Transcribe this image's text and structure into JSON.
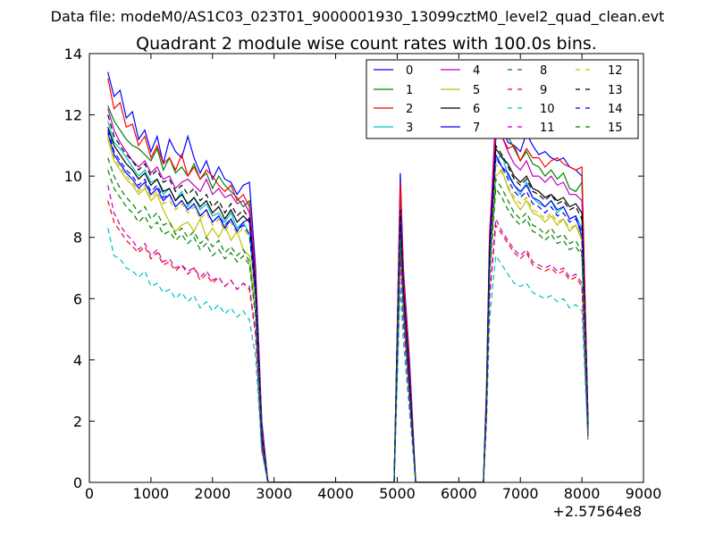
{
  "chart_data": {
    "type": "line",
    "suptitle": "Data file: modeM0/AS1C03_023T01_9000001930_13099cztM0_level2_quad_clean.evt",
    "title": "Quadrant 2 module wise count rates with 100.0s bins.",
    "xlabel": "",
    "ylabel": "",
    "x_offset_label": "+2.57564e8",
    "xlim": [
      0,
      9000
    ],
    "ylim": [
      0,
      14
    ],
    "xticks": [
      0,
      1000,
      2000,
      3000,
      4000,
      5000,
      6000,
      7000,
      8000,
      9000
    ],
    "yticks": [
      0,
      2,
      4,
      6,
      8,
      10,
      12,
      14
    ],
    "grid": false,
    "legend_position": "top-right",
    "legend_columns": 4,
    "x": [
      300,
      400,
      500,
      600,
      700,
      800,
      900,
      1000,
      1100,
      1200,
      1300,
      1400,
      1500,
      1600,
      1700,
      1800,
      1900,
      2000,
      2100,
      2200,
      2300,
      2400,
      2500,
      2600,
      2700,
      2800,
      2900,
      3000,
      3500,
      4000,
      4500,
      4950,
      5050,
      5100,
      5200,
      5300,
      5400,
      5500,
      6000,
      6400,
      6450,
      6500,
      6600,
      6700,
      6800,
      6900,
      7000,
      7100,
      7200,
      7300,
      7400,
      7500,
      7600,
      7700,
      7800,
      7900,
      8000,
      8100
    ],
    "series": [
      {
        "name": "0",
        "color": "#0000ff",
        "dash": "solid",
        "values": [
          13.4,
          12.6,
          12.8,
          11.9,
          12.1,
          11.2,
          11.5,
          10.8,
          11.3,
          10.4,
          11.2,
          10.8,
          10.6,
          11.3,
          10.6,
          10.1,
          10.5,
          9.9,
          10.3,
          9.9,
          9.8,
          9.4,
          9.7,
          9.8,
          7.0,
          2.0,
          0,
          0,
          0,
          0,
          0,
          0,
          10.1,
          7.0,
          4.0,
          0,
          0,
          0,
          0,
          0,
          3.0,
          8.0,
          11.2,
          11.6,
          11.1,
          11.0,
          10.8,
          11.4,
          11.0,
          10.7,
          10.8,
          10.6,
          10.5,
          10.6,
          10.3,
          10.2,
          10.0,
          2.0
        ]
      },
      {
        "name": "1",
        "color": "#008000",
        "dash": "solid",
        "values": [
          12.3,
          11.8,
          11.5,
          11.2,
          11.0,
          10.9,
          10.7,
          10.5,
          10.9,
          10.2,
          10.6,
          10.1,
          10.3,
          10.0,
          10.4,
          9.9,
          10.1,
          9.6,
          10.0,
          9.7,
          9.5,
          9.3,
          9.0,
          9.2,
          6.5,
          1.5,
          0,
          0,
          0,
          0,
          0,
          0,
          9.5,
          6.8,
          3.5,
          0,
          0,
          0,
          0,
          0,
          2.8,
          7.8,
          11.5,
          11.9,
          11.3,
          10.9,
          10.5,
          10.8,
          10.4,
          10.3,
          10.0,
          10.2,
          9.9,
          10.1,
          9.6,
          9.5,
          9.8,
          1.9
        ]
      },
      {
        "name": "2",
        "color": "#ff0000",
        "dash": "solid",
        "values": [
          13.2,
          12.2,
          12.4,
          11.6,
          11.7,
          11.0,
          11.3,
          10.6,
          11.0,
          10.4,
          10.6,
          10.2,
          10.7,
          10.0,
          10.3,
          9.9,
          10.2,
          10.0,
          9.7,
          9.5,
          9.7,
          9.2,
          9.4,
          9.0,
          6.8,
          1.8,
          0,
          0,
          0,
          0,
          0,
          0,
          9.8,
          6.9,
          3.8,
          0,
          0,
          0,
          0,
          0,
          3.0,
          8.2,
          11.4,
          11.3,
          10.9,
          11.0,
          10.5,
          10.9,
          10.6,
          10.6,
          10.3,
          10.5,
          10.6,
          10.4,
          10.3,
          10.2,
          10.3,
          1.9
        ]
      },
      {
        "name": "3",
        "color": "#00bfbf",
        "dash": "solid",
        "values": [
          11.8,
          11.1,
          10.9,
          10.6,
          10.3,
          10.0,
          10.2,
          9.8,
          9.9,
          9.4,
          9.6,
          9.2,
          9.5,
          9.0,
          9.3,
          8.9,
          9.1,
          8.7,
          8.8,
          8.5,
          8.8,
          8.3,
          8.5,
          8.1,
          6.0,
          1.5,
          0,
          0,
          0,
          0,
          0,
          0,
          8.8,
          6.2,
          3.2,
          0,
          0,
          0,
          0,
          0,
          2.5,
          7.2,
          10.5,
          10.7,
          10.0,
          9.7,
          9.4,
          9.8,
          9.3,
          9.1,
          9.0,
          9.2,
          8.8,
          9.0,
          8.6,
          8.7,
          8.3,
          1.7
        ]
      },
      {
        "name": "4",
        "color": "#bf00bf",
        "dash": "solid",
        "values": [
          12.2,
          11.5,
          11.1,
          10.8,
          10.5,
          10.3,
          10.5,
          10.1,
          10.3,
          9.9,
          10.0,
          9.6,
          9.8,
          9.9,
          9.7,
          9.5,
          9.9,
          9.4,
          9.6,
          9.3,
          9.4,
          9.1,
          9.2,
          8.8,
          6.5,
          1.6,
          0,
          0,
          0,
          0,
          0,
          0,
          9.0,
          6.5,
          3.4,
          0,
          0,
          0,
          0,
          0,
          2.8,
          8.0,
          12.1,
          11.3,
          10.8,
          10.4,
          10.2,
          10.5,
          10.0,
          10.0,
          9.8,
          10.0,
          9.7,
          9.8,
          9.4,
          9.4,
          9.2,
          1.8
        ]
      },
      {
        "name": "5",
        "color": "#bfbf00",
        "dash": "solid",
        "values": [
          11.2,
          10.5,
          10.2,
          9.9,
          9.7,
          9.4,
          9.6,
          9.2,
          9.4,
          8.9,
          8.5,
          8.2,
          8.4,
          8.5,
          8.2,
          8.6,
          8.0,
          8.3,
          8.0,
          8.4,
          7.9,
          8.2,
          7.6,
          7.4,
          5.8,
          1.4,
          0,
          0,
          0,
          0,
          0,
          0,
          8.5,
          6.0,
          3.0,
          0,
          0,
          0,
          0,
          0,
          2.5,
          7.0,
          10.0,
          10.2,
          9.6,
          9.2,
          8.9,
          9.2,
          8.8,
          8.7,
          8.5,
          8.7,
          8.4,
          8.6,
          8.2,
          8.4,
          7.9,
          1.6
        ]
      },
      {
        "name": "6",
        "color": "#000000",
        "dash": "solid",
        "values": [
          11.6,
          11.0,
          10.7,
          10.4,
          10.2,
          9.9,
          10.1,
          9.7,
          9.9,
          9.5,
          9.6,
          9.2,
          9.4,
          9.1,
          9.3,
          9.0,
          9.2,
          8.8,
          9.0,
          8.6,
          8.9,
          8.5,
          8.7,
          8.5,
          6.3,
          1.5,
          0,
          0,
          0,
          0,
          0,
          0,
          8.7,
          6.3,
          3.3,
          0,
          0,
          0,
          0,
          0,
          2.7,
          7.6,
          10.9,
          10.6,
          10.4,
          10.0,
          9.8,
          10.0,
          9.6,
          9.5,
          9.3,
          9.4,
          9.2,
          9.3,
          9.0,
          9.1,
          8.8,
          1.8
        ]
      },
      {
        "name": "7",
        "color": "#0000ff",
        "dash": "solid",
        "values": [
          11.4,
          10.7,
          10.4,
          10.1,
          9.9,
          9.6,
          9.8,
          9.4,
          9.6,
          9.2,
          9.4,
          9.0,
          9.2,
          8.9,
          9.1,
          8.7,
          8.9,
          8.5,
          8.7,
          8.3,
          8.6,
          8.2,
          8.5,
          8.6,
          6.2,
          1.5,
          0,
          0,
          0,
          0,
          0,
          0,
          8.6,
          6.2,
          3.2,
          0,
          0,
          0,
          0,
          0,
          2.6,
          7.4,
          10.7,
          10.3,
          10.1,
          9.7,
          9.5,
          9.7,
          9.3,
          9.2,
          9.0,
          9.2,
          8.9,
          9.0,
          8.6,
          8.7,
          8.0,
          1.7
        ]
      },
      {
        "name": "8",
        "color": "#008000",
        "dash": "dashed",
        "values": [
          10.6,
          10.0,
          9.6,
          9.3,
          9.1,
          8.8,
          9.0,
          8.6,
          8.8,
          8.4,
          8.5,
          8.1,
          8.3,
          8.0,
          8.2,
          7.8,
          8.0,
          7.7,
          7.9,
          7.5,
          7.7,
          7.4,
          7.6,
          7.2,
          5.5,
          1.3,
          0,
          0,
          0,
          0,
          0,
          0,
          8.2,
          5.8,
          2.9,
          0,
          0,
          0,
          0,
          0,
          2.4,
          6.9,
          9.9,
          9.6,
          9.2,
          8.8,
          8.6,
          8.8,
          8.4,
          8.3,
          8.1,
          8.3,
          8.0,
          8.1,
          7.8,
          7.9,
          7.5,
          1.6
        ]
      },
      {
        "name": "9",
        "color": "#ff0000",
        "dash": "dashed",
        "values": [
          9.2,
          8.5,
          8.2,
          7.9,
          7.7,
          7.5,
          7.7,
          7.3,
          7.5,
          7.1,
          7.2,
          6.9,
          7.1,
          6.8,
          7.0,
          6.6,
          6.8,
          6.5,
          6.7,
          6.4,
          6.6,
          6.3,
          6.5,
          6.3,
          4.8,
          1.1,
          0,
          0,
          0,
          0,
          0,
          0,
          7.4,
          5.2,
          2.6,
          0,
          0,
          0,
          0,
          0,
          2.1,
          6.0,
          8.4,
          8.1,
          7.8,
          7.5,
          7.3,
          7.5,
          7.1,
          7.0,
          6.9,
          7.0,
          6.8,
          6.9,
          6.6,
          6.7,
          6.4,
          1.4
        ]
      },
      {
        "name": "10",
        "color": "#00bfbf",
        "dash": "dashed",
        "values": [
          8.3,
          7.4,
          7.3,
          7.0,
          6.9,
          6.7,
          6.9,
          6.4,
          6.5,
          6.2,
          6.3,
          6.0,
          6.2,
          5.9,
          6.1,
          5.7,
          5.9,
          5.6,
          5.8,
          5.5,
          5.7,
          5.4,
          5.6,
          5.3,
          4.1,
          1.0,
          0,
          0,
          0,
          0,
          0,
          0,
          6.4,
          4.6,
          2.3,
          0,
          0,
          0,
          0,
          0,
          1.9,
          5.3,
          7.4,
          7.1,
          6.8,
          6.5,
          6.4,
          6.5,
          6.2,
          6.1,
          6.0,
          6.1,
          5.9,
          6.0,
          5.7,
          5.8,
          5.6,
          1.3
        ]
      },
      {
        "name": "11",
        "color": "#bf00bf",
        "dash": "dashed",
        "values": [
          9.7,
          8.8,
          8.4,
          8.1,
          7.9,
          7.6,
          7.8,
          7.4,
          7.6,
          7.2,
          7.3,
          7.0,
          7.1,
          6.9,
          7.0,
          6.7,
          6.9,
          6.6,
          6.7,
          6.4,
          6.6,
          6.3,
          6.5,
          6.4,
          4.9,
          1.1,
          0,
          0,
          0,
          0,
          0,
          0,
          7.5,
          5.3,
          2.6,
          0,
          0,
          0,
          0,
          0,
          2.1,
          6.1,
          8.6,
          8.2,
          7.9,
          7.6,
          7.4,
          7.6,
          7.2,
          7.1,
          7.0,
          7.1,
          6.9,
          7.0,
          6.7,
          6.8,
          6.5,
          1.4
        ]
      },
      {
        "name": "12",
        "color": "#bfbf00",
        "dash": "dashed",
        "values": [
          11.3,
          10.6,
          10.3,
          10.0,
          9.8,
          9.5,
          9.7,
          9.3,
          9.5,
          9.1,
          9.2,
          8.9,
          9.1,
          8.8,
          9.0,
          8.6,
          8.8,
          8.4,
          8.6,
          8.2,
          8.5,
          8.1,
          8.3,
          8.0,
          6.0,
          1.4,
          0,
          0,
          0,
          0,
          0,
          0,
          8.5,
          6.1,
          3.1,
          0,
          0,
          0,
          0,
          0,
          2.6,
          7.3,
          10.4,
          10.1,
          9.7,
          9.3,
          9.1,
          9.3,
          8.9,
          8.8,
          8.6,
          8.8,
          8.5,
          8.6,
          8.3,
          8.4,
          8.0,
          1.7
        ]
      },
      {
        "name": "13",
        "color": "#000000",
        "dash": "dashed",
        "values": [
          12.0,
          11.3,
          11.0,
          10.7,
          10.5,
          10.2,
          10.4,
          10.0,
          10.2,
          9.8,
          9.9,
          9.5,
          9.7,
          9.4,
          9.6,
          9.2,
          9.4,
          9.0,
          9.2,
          8.8,
          9.1,
          8.7,
          8.9,
          8.6,
          6.4,
          1.5,
          0,
          0,
          0,
          0,
          0,
          0,
          8.9,
          6.4,
          3.3,
          0,
          0,
          0,
          0,
          0,
          2.7,
          7.7,
          11.0,
          10.7,
          10.3,
          9.9,
          9.7,
          9.9,
          9.5,
          9.4,
          9.2,
          9.4,
          9.1,
          9.2,
          8.9,
          9.0,
          8.6,
          1.8
        ]
      },
      {
        "name": "14",
        "color": "#0000ff",
        "dash": "dashed",
        "values": [
          11.5,
          10.8,
          10.5,
          10.2,
          10.0,
          9.7,
          9.9,
          9.5,
          9.7,
          9.3,
          9.4,
          9.0,
          9.2,
          8.9,
          9.1,
          8.7,
          8.9,
          8.5,
          8.7,
          8.4,
          8.6,
          8.2,
          8.4,
          8.1,
          6.1,
          1.4,
          0,
          0,
          0,
          0,
          0,
          0,
          8.6,
          6.2,
          3.2,
          0,
          0,
          0,
          0,
          0,
          2.6,
          7.4,
          10.6,
          10.3,
          9.9,
          9.5,
          9.3,
          9.5,
          9.1,
          9.0,
          8.8,
          9.0,
          8.7,
          8.8,
          8.5,
          8.6,
          8.2,
          1.7
        ]
      },
      {
        "name": "15",
        "color": "#008000",
        "dash": "dashed",
        "values": [
          10.2,
          9.6,
          9.3,
          9.0,
          8.8,
          8.5,
          8.7,
          8.3,
          8.5,
          8.1,
          8.2,
          7.9,
          8.1,
          7.8,
          8.0,
          7.6,
          7.8,
          7.4,
          7.6,
          7.3,
          7.5,
          7.2,
          7.4,
          7.1,
          5.4,
          1.3,
          0,
          0,
          0,
          0,
          0,
          0,
          8.0,
          5.7,
          2.8,
          0,
          0,
          0,
          0,
          0,
          2.3,
          6.7,
          9.6,
          9.3,
          8.9,
          8.6,
          8.4,
          8.6,
          8.2,
          8.1,
          7.9,
          8.1,
          7.8,
          7.9,
          7.6,
          7.7,
          7.4,
          1.5
        ]
      }
    ]
  }
}
